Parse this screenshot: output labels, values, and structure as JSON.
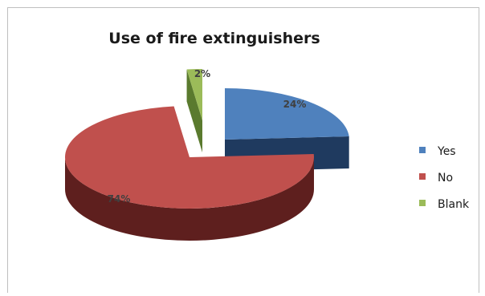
{
  "chart_data": {
    "type": "pie",
    "title": "Use of fire extinguishers",
    "categories": [
      "Yes",
      "No",
      "Blank"
    ],
    "values": [
      24,
      74,
      2
    ],
    "data_labels": [
      "24%",
      "74%",
      "2%"
    ],
    "colors": [
      "#4f81bd",
      "#c0504d",
      "#9bbb59"
    ],
    "side_colors": [
      "#1f3a5f",
      "#5e1f1e",
      "#5a7a2e"
    ],
    "exploded": true,
    "style": "3d",
    "legend": "right"
  }
}
